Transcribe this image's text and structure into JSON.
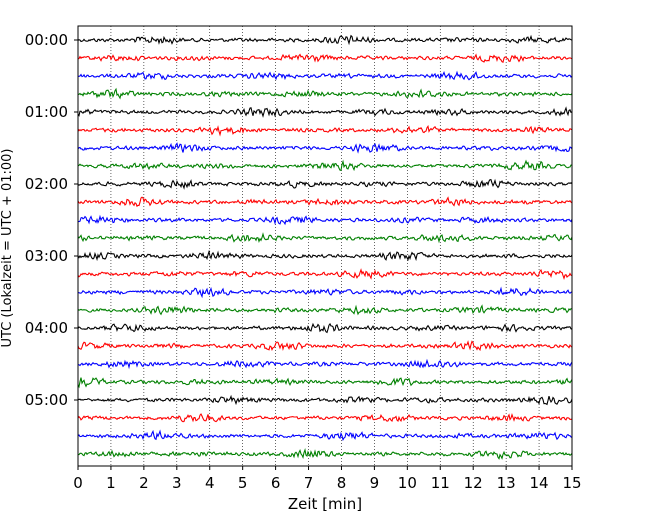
{
  "chart_data": {
    "type": "line",
    "title": "",
    "xlabel": "Zeit  [min]",
    "ylabel": "UTC (Lokalzeit = UTC + 01:00)",
    "xlim": [
      0,
      15
    ],
    "x_ticks": [
      "0",
      "1",
      "2",
      "3",
      "4",
      "5",
      "6",
      "7",
      "8",
      "9",
      "10",
      "11",
      "12",
      "13",
      "14",
      "15"
    ],
    "y_ticks": [
      "00:00",
      "01:00",
      "02:00",
      "03:00",
      "04:00",
      "05:00"
    ],
    "grid": "vertical dotted lines at each minute",
    "trace_interval_minutes": 15,
    "trace_start_times": [
      "00:00",
      "00:15",
      "00:30",
      "00:45",
      "01:00",
      "01:15",
      "01:30",
      "01:45",
      "02:00",
      "02:15",
      "02:30",
      "02:45",
      "03:00",
      "03:15",
      "03:30",
      "03:45",
      "04:00",
      "04:15",
      "04:30",
      "04:45",
      "05:00",
      "05:15",
      "05:30",
      "05:45"
    ],
    "color_cycle": [
      "#000000",
      "#ff0000",
      "#0000ff",
      "#008000"
    ]
  }
}
